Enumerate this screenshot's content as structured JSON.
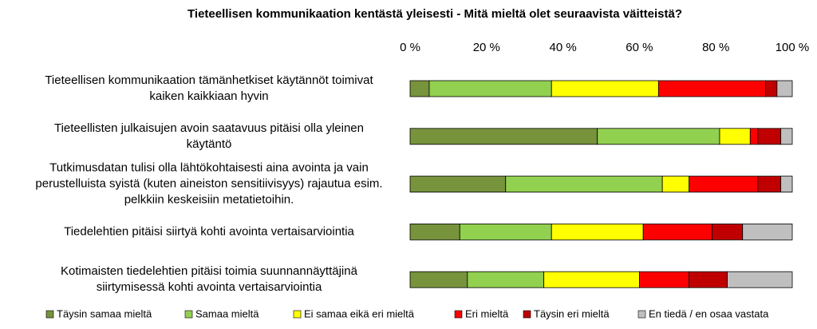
{
  "chart_data": {
    "type": "stacked_bar_horizontal",
    "title": "Tieteellisen kommunikaation kentästä yleisesti - Mitä mieltä olet seuraavista väitteistä?",
    "categories": [
      [
        "Tieteellisen kommunikaation tämänhetkiset käytännöt toimivat",
        "kaiken kaikkiaan hyvin"
      ],
      [
        "Tieteellisten julkaisujen avoin saatavuus pitäisi olla yleinen",
        "käytäntö"
      ],
      [
        "Tutkimusdatan tulisi olla lähtökohtaisesti aina avointa ja vain",
        "perustelluista syistä (kuten aineiston sensitiivisyys) rajautua esim.",
        "pelkkiin keskeisiin metatietoihin."
      ],
      [
        "Tiedelehtien pitäisi siirtyä kohti avointa vertaisarviointia"
      ],
      [
        "Kotimaisten tiedelehtien pitäisi toimia suunnannäyttäjinä",
        "siirtymisessä kohti avointa vertaisarviointia"
      ]
    ],
    "series": [
      {
        "name": "Täysin samaa mieltä",
        "color": "#77933c",
        "values": [
          5,
          49,
          25,
          13,
          15
        ]
      },
      {
        "name": "Samaa mieltä",
        "color": "#92d050",
        "values": [
          32,
          32,
          41,
          24,
          20
        ]
      },
      {
        "name": "Ei samaa eikä eri mieltä",
        "color": "#ffff00",
        "values": [
          28,
          8,
          7,
          24,
          25
        ]
      },
      {
        "name": "Eri mieltä",
        "color": "#ff0000",
        "values": [
          28,
          2,
          18,
          18,
          13
        ]
      },
      {
        "name": "Täysin eri mieltä",
        "color": "#c00000",
        "values": [
          3,
          6,
          6,
          8,
          10
        ]
      },
      {
        "name": "En tiedä / en osaa vastata",
        "color": "#bfbfbf",
        "values": [
          4,
          3,
          3,
          13,
          17
        ]
      }
    ],
    "xlim": [
      0,
      100
    ],
    "xticks": [
      {
        "value": 0,
        "label": "0 %"
      },
      {
        "value": 20,
        "label": "20 %"
      },
      {
        "value": 40,
        "label": "40 %"
      },
      {
        "value": 60,
        "label": "60 %"
      },
      {
        "value": 80,
        "label": "80 %"
      },
      {
        "value": 100,
        "label": "100 %"
      }
    ],
    "legend": "bottom"
  }
}
